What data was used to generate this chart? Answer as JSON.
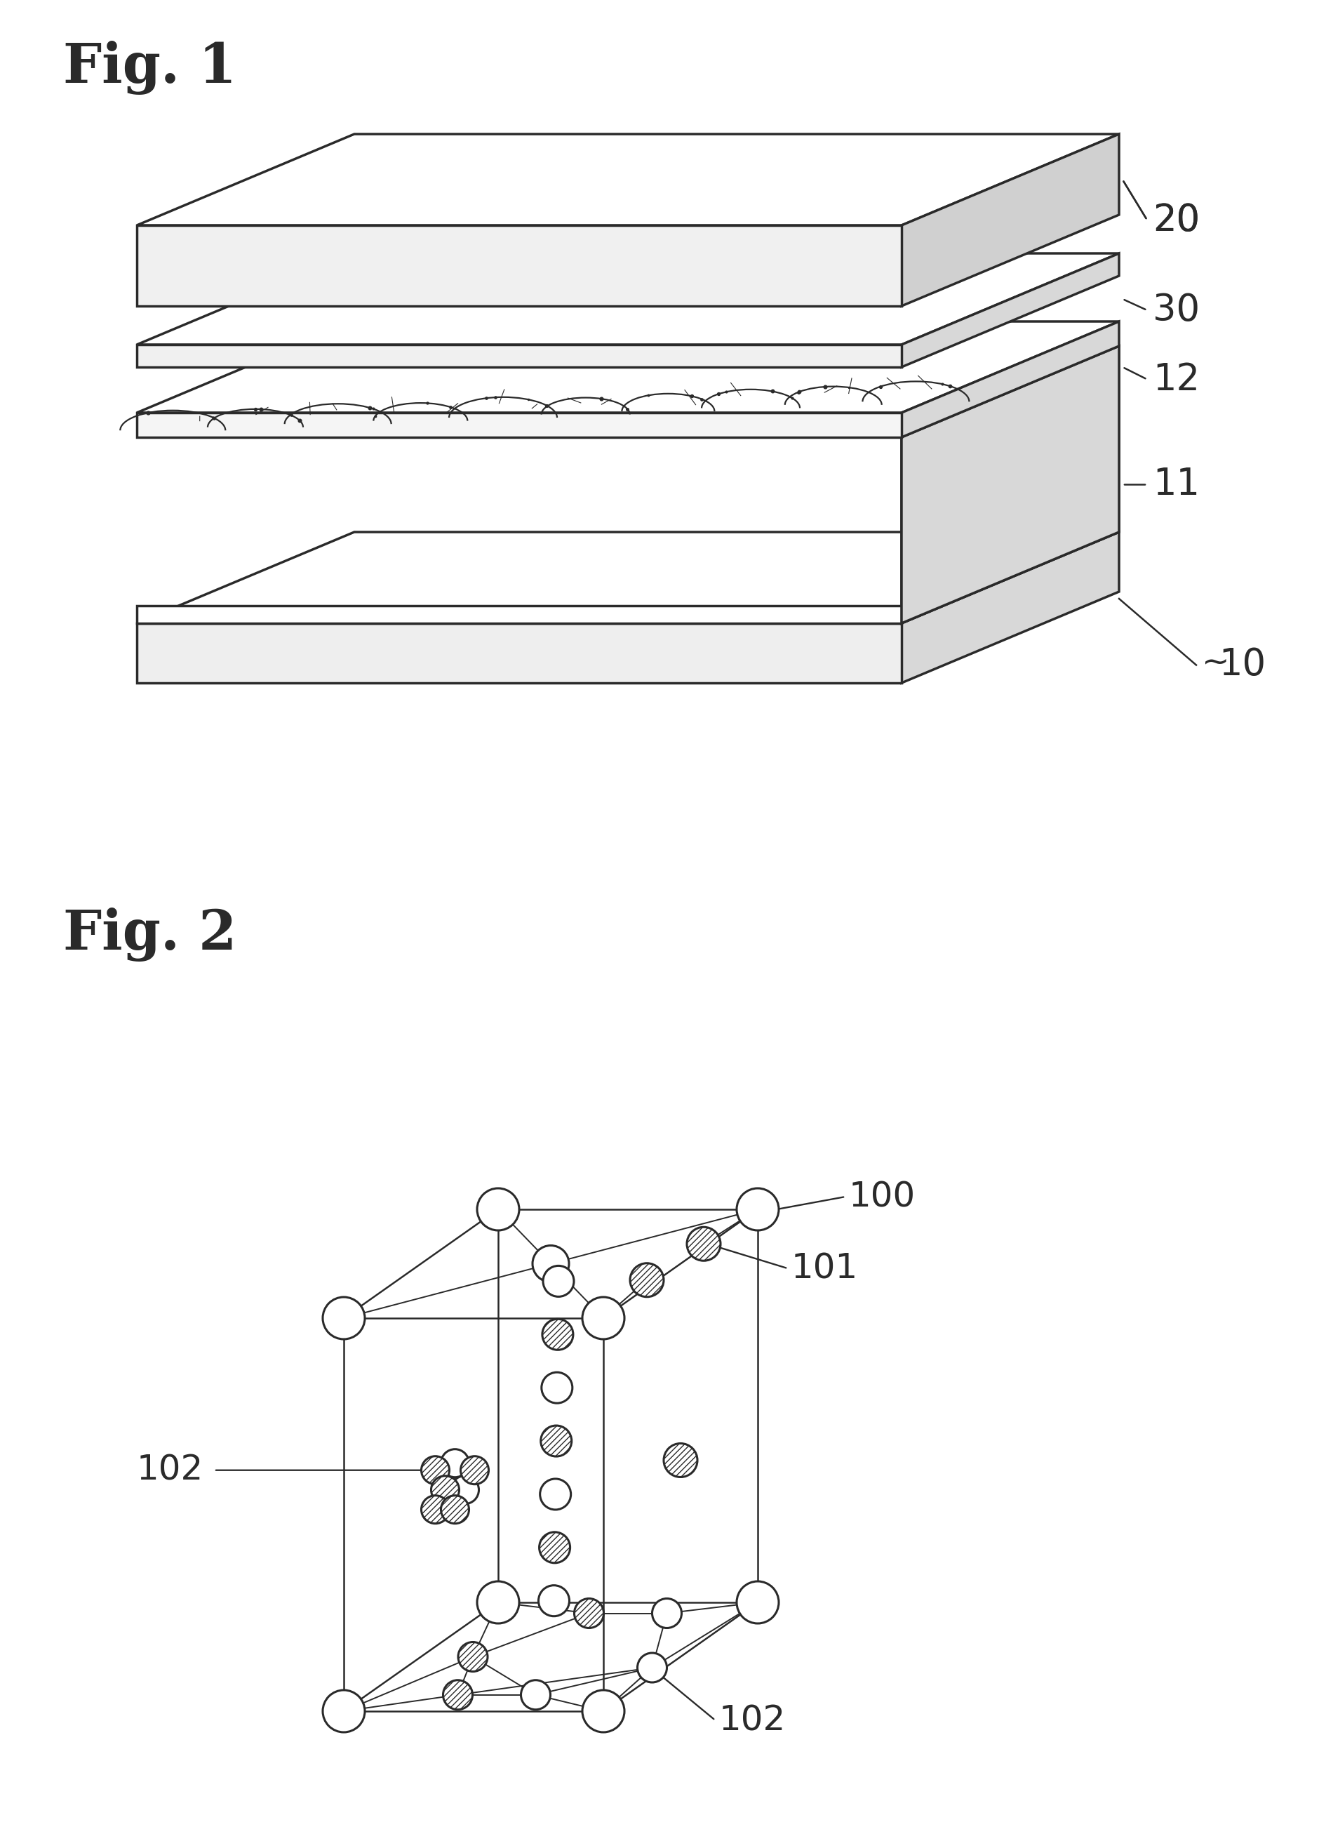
{
  "fig_label_1": "Fig. 1",
  "fig_label_2": "Fig. 2",
  "label_20": "20",
  "label_30": "30",
  "label_12": "12",
  "label_11": "11",
  "label_10": "10",
  "label_100": "100",
  "label_101": "101",
  "label_102": "102",
  "bg_color": "#ffffff",
  "line_color": "#2a2a2a"
}
